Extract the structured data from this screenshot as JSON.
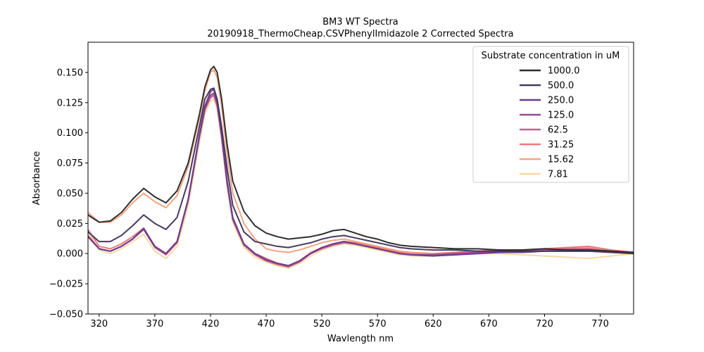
{
  "chart_data": {
    "type": "line",
    "title": "BM3 WT Spectra",
    "subtitle": "20190918_ThermoCheap.CSVPhenylImidazole 2 Corrected Spectra",
    "xlabel": "Wavlength nm",
    "ylabel": "Absorbance",
    "xlim": [
      310,
      800
    ],
    "ylim": [
      -0.05,
      0.175
    ],
    "x_ticks": [
      320,
      370,
      420,
      470,
      520,
      570,
      620,
      670,
      720,
      770
    ],
    "y_ticks": [
      -0.05,
      -0.025,
      0.0,
      0.025,
      0.05,
      0.075,
      0.1,
      0.125,
      0.15
    ],
    "y_tick_labels": [
      "−0.050",
      "−0.025",
      "0.000",
      "0.025",
      "0.050",
      "0.075",
      "0.100",
      "0.125",
      "0.150"
    ],
    "legend": {
      "title": "Substrate concentration in uM",
      "placement": "top-right"
    },
    "grid": false,
    "x": [
      310,
      320,
      330,
      340,
      350,
      360,
      370,
      380,
      390,
      400,
      410,
      415,
      420,
      423,
      426,
      430,
      435,
      440,
      450,
      460,
      470,
      480,
      490,
      500,
      510,
      520,
      530,
      540,
      550,
      560,
      570,
      580,
      590,
      600,
      620,
      640,
      660,
      680,
      700,
      720,
      740,
      760,
      780,
      800
    ],
    "series": [
      {
        "name": "1000.0",
        "color": "#2e2e2e",
        "values": [
          0.032,
          0.026,
          0.027,
          0.034,
          0.045,
          0.054,
          0.047,
          0.042,
          0.052,
          0.075,
          0.115,
          0.138,
          0.152,
          0.155,
          0.15,
          0.128,
          0.09,
          0.06,
          0.035,
          0.023,
          0.017,
          0.014,
          0.012,
          0.013,
          0.014,
          0.016,
          0.019,
          0.02,
          0.017,
          0.014,
          0.012,
          0.009,
          0.007,
          0.006,
          0.005,
          0.004,
          0.004,
          0.003,
          0.003,
          0.004,
          0.003,
          0.003,
          0.002,
          0.001
        ]
      },
      {
        "name": "500.0",
        "color": "#463a5f",
        "values": [
          0.018,
          0.01,
          0.01,
          0.015,
          0.023,
          0.032,
          0.025,
          0.02,
          0.03,
          0.06,
          0.105,
          0.128,
          0.136,
          0.137,
          0.128,
          0.105,
          0.07,
          0.04,
          0.018,
          0.01,
          0.008,
          0.006,
          0.005,
          0.007,
          0.009,
          0.012,
          0.014,
          0.015,
          0.013,
          0.011,
          0.009,
          0.007,
          0.005,
          0.004,
          0.003,
          0.003,
          0.002,
          0.002,
          0.002,
          0.002,
          0.002,
          0.002,
          0.001,
          0.0
        ]
      },
      {
        "name": "250.0",
        "color": "#6b3d8d",
        "values": [
          0.014,
          0.004,
          0.002,
          0.006,
          0.012,
          0.021,
          0.006,
          0.0,
          0.01,
          0.045,
          0.098,
          0.122,
          0.134,
          0.136,
          0.126,
          0.1,
          0.06,
          0.03,
          0.008,
          0.0,
          -0.005,
          -0.008,
          -0.01,
          -0.006,
          0.0,
          0.005,
          0.008,
          0.01,
          0.008,
          0.006,
          0.004,
          0.002,
          0.0,
          -0.001,
          -0.002,
          -0.001,
          0.0,
          0.001,
          0.001,
          0.002,
          0.002,
          0.002,
          0.001,
          0.0
        ]
      },
      {
        "name": "125.0",
        "color": "#974b8e",
        "values": [
          0.014,
          0.004,
          0.002,
          0.006,
          0.012,
          0.02,
          0.006,
          0.0,
          0.01,
          0.045,
          0.097,
          0.12,
          0.131,
          0.133,
          0.124,
          0.098,
          0.058,
          0.029,
          0.008,
          0.0,
          -0.005,
          -0.008,
          -0.01,
          -0.006,
          0.0,
          0.005,
          0.008,
          0.01,
          0.008,
          0.006,
          0.004,
          0.002,
          0.0,
          -0.001,
          -0.001,
          0.0,
          0.001,
          0.001,
          0.002,
          0.002,
          0.003,
          0.003,
          0.002,
          0.001
        ]
      },
      {
        "name": "62.5",
        "color": "#c75f8f",
        "values": [
          0.015,
          0.004,
          0.002,
          0.006,
          0.012,
          0.02,
          0.005,
          -0.001,
          0.009,
          0.044,
          0.096,
          0.119,
          0.129,
          0.131,
          0.122,
          0.096,
          0.057,
          0.028,
          0.007,
          -0.001,
          -0.006,
          -0.009,
          -0.011,
          -0.007,
          0.0,
          0.004,
          0.007,
          0.009,
          0.008,
          0.006,
          0.004,
          0.002,
          0.0,
          -0.001,
          -0.001,
          0.0,
          0.001,
          0.002,
          0.002,
          0.003,
          0.004,
          0.004,
          0.002,
          0.001
        ]
      },
      {
        "name": "31.25",
        "color": "#e97a7c",
        "values": [
          0.02,
          0.006,
          0.004,
          0.008,
          0.014,
          0.021,
          0.006,
          0.0,
          0.01,
          0.045,
          0.097,
          0.12,
          0.13,
          0.132,
          0.123,
          0.097,
          0.058,
          0.029,
          0.008,
          0.0,
          -0.004,
          -0.008,
          -0.01,
          -0.006,
          0.001,
          0.005,
          0.008,
          0.01,
          0.009,
          0.007,
          0.005,
          0.003,
          0.001,
          0.0,
          0.0,
          0.001,
          0.002,
          0.003,
          0.003,
          0.004,
          0.005,
          0.006,
          0.003,
          0.001
        ]
      },
      {
        "name": "15.62",
        "color": "#f4a480",
        "values": [
          0.034,
          0.026,
          0.026,
          0.032,
          0.042,
          0.05,
          0.043,
          0.038,
          0.048,
          0.072,
          0.112,
          0.135,
          0.15,
          0.152,
          0.146,
          0.122,
          0.082,
          0.05,
          0.025,
          0.012,
          0.004,
          0.002,
          0.001,
          0.003,
          0.006,
          0.009,
          0.011,
          0.012,
          0.01,
          0.008,
          0.006,
          0.004,
          0.002,
          0.001,
          0.0,
          0.001,
          0.002,
          0.003,
          0.003,
          0.004,
          0.005,
          0.005,
          0.003,
          0.001
        ]
      },
      {
        "name": "7.81",
        "color": "#f7d9a4",
        "values": [
          0.018,
          0.003,
          0.0,
          0.004,
          0.01,
          0.016,
          0.002,
          -0.004,
          0.006,
          0.04,
          0.092,
          0.116,
          0.126,
          0.128,
          0.12,
          0.094,
          0.055,
          0.026,
          0.005,
          -0.003,
          -0.007,
          -0.01,
          -0.012,
          -0.008,
          -0.002,
          0.003,
          0.006,
          0.008,
          0.007,
          0.005,
          0.003,
          0.001,
          -0.001,
          -0.002,
          -0.002,
          -0.001,
          0.0,
          0.0,
          -0.001,
          -0.002,
          -0.003,
          -0.004,
          -0.002,
          0.0
        ]
      }
    ]
  }
}
